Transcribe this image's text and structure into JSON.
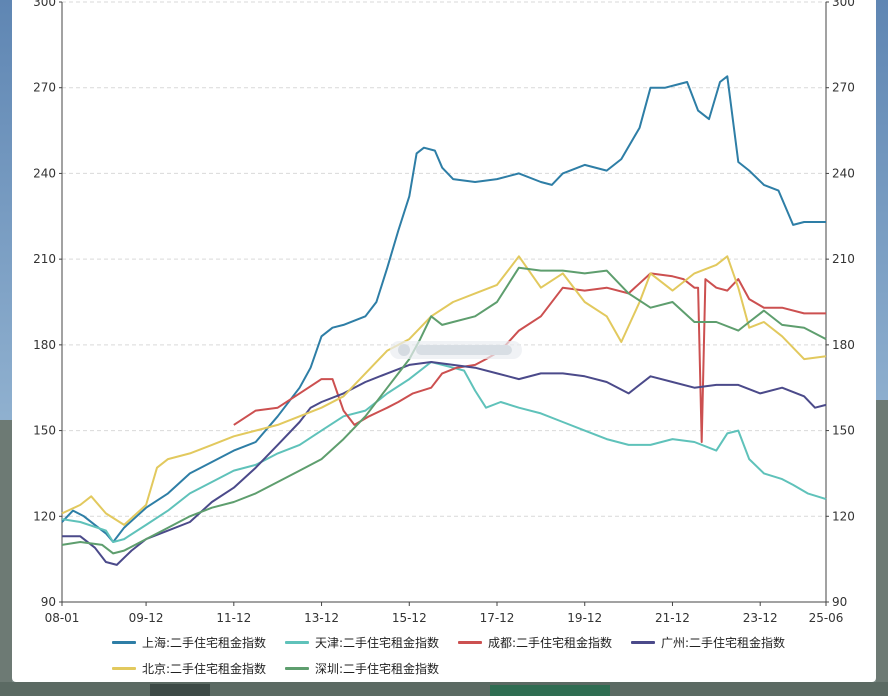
{
  "chart_data": {
    "type": "line",
    "title": "",
    "xlabel": "",
    "ylabel": "",
    "ylim": [
      90,
      300
    ],
    "y_ticks": [
      90,
      120,
      150,
      180,
      210,
      240,
      270,
      300
    ],
    "x_range": [
      "2008-01",
      "2025-06"
    ],
    "x_ticks": [
      "08-01",
      "09-12",
      "11-12",
      "13-12",
      "15-12",
      "17-12",
      "19-12",
      "21-12",
      "23-12",
      "25-06"
    ],
    "grid": "horizontal dashed",
    "legend_position": "bottom",
    "series": [
      {
        "name": "上海:二手住宅租金指数",
        "color": "#2e7ea6",
        "points": [
          [
            "2008-01",
            118
          ],
          [
            "2008-04",
            122
          ],
          [
            "2008-07",
            120
          ],
          [
            "2008-10",
            117
          ],
          [
            "2009-01",
            114
          ],
          [
            "2009-03",
            111
          ],
          [
            "2009-06",
            116
          ],
          [
            "2009-12",
            123
          ],
          [
            "2010-06",
            128
          ],
          [
            "2010-12",
            135
          ],
          [
            "2011-06",
            139
          ],
          [
            "2011-12",
            143
          ],
          [
            "2012-06",
            146
          ],
          [
            "2012-12",
            155
          ],
          [
            "2013-06",
            165
          ],
          [
            "2013-09",
            172
          ],
          [
            "2013-12",
            183
          ],
          [
            "2014-03",
            186
          ],
          [
            "2014-06",
            187
          ],
          [
            "2014-12",
            190
          ],
          [
            "2015-03",
            195
          ],
          [
            "2015-06",
            207
          ],
          [
            "2015-09",
            220
          ],
          [
            "2015-12",
            232
          ],
          [
            "2016-02",
            247
          ],
          [
            "2016-04",
            249
          ],
          [
            "2016-07",
            248
          ],
          [
            "2016-09",
            242
          ],
          [
            "2016-12",
            238
          ],
          [
            "2017-06",
            237
          ],
          [
            "2017-12",
            238
          ],
          [
            "2018-06",
            240
          ],
          [
            "2018-12",
            237
          ],
          [
            "2019-03",
            236
          ],
          [
            "2019-06",
            240
          ],
          [
            "2019-12",
            243
          ],
          [
            "2020-06",
            241
          ],
          [
            "2020-10",
            245
          ],
          [
            "2021-03",
            256
          ],
          [
            "2021-06",
            270
          ],
          [
            "2021-10",
            270
          ],
          [
            "2022-01",
            271
          ],
          [
            "2022-04",
            272
          ],
          [
            "2022-07",
            262
          ],
          [
            "2022-10",
            259
          ],
          [
            "2023-01",
            272
          ],
          [
            "2023-03",
            274
          ],
          [
            "2023-06",
            244
          ],
          [
            "2023-09",
            241
          ],
          [
            "2024-01",
            236
          ],
          [
            "2024-05",
            234
          ],
          [
            "2024-09",
            222
          ],
          [
            "2024-12",
            223
          ],
          [
            "2025-06",
            223
          ]
        ]
      },
      {
        "name": "天津:二手住宅租金指数",
        "color": "#5fc2ba",
        "points": [
          [
            "2008-01",
            119
          ],
          [
            "2008-06",
            118
          ],
          [
            "2009-01",
            115
          ],
          [
            "2009-03",
            111
          ],
          [
            "2009-06",
            112
          ],
          [
            "2009-12",
            117
          ],
          [
            "2010-06",
            122
          ],
          [
            "2010-12",
            128
          ],
          [
            "2011-06",
            132
          ],
          [
            "2011-12",
            136
          ],
          [
            "2012-06",
            138
          ],
          [
            "2012-12",
            142
          ],
          [
            "2013-06",
            145
          ],
          [
            "2013-12",
            150
          ],
          [
            "2014-06",
            155
          ],
          [
            "2014-12",
            157
          ],
          [
            "2015-06",
            163
          ],
          [
            "2015-12",
            168
          ],
          [
            "2016-06",
            174
          ],
          [
            "2016-12",
            172
          ],
          [
            "2017-03",
            171
          ],
          [
            "2017-06",
            164
          ],
          [
            "2017-09",
            158
          ],
          [
            "2018-01",
            160
          ],
          [
            "2018-06",
            158
          ],
          [
            "2018-12",
            156
          ],
          [
            "2019-06",
            153
          ],
          [
            "2019-12",
            150
          ],
          [
            "2020-06",
            147
          ],
          [
            "2020-12",
            145
          ],
          [
            "2021-06",
            145
          ],
          [
            "2021-12",
            147
          ],
          [
            "2022-06",
            146
          ],
          [
            "2022-12",
            143
          ],
          [
            "2023-03",
            149
          ],
          [
            "2023-06",
            150
          ],
          [
            "2023-09",
            140
          ],
          [
            "2024-01",
            135
          ],
          [
            "2024-06",
            133
          ],
          [
            "2024-09",
            131
          ],
          [
            "2025-01",
            128
          ],
          [
            "2025-06",
            126
          ]
        ]
      },
      {
        "name": "成都:二手住宅租金指数",
        "color": "#cc5050",
        "points": [
          [
            "2011-12",
            152
          ],
          [
            "2012-06",
            157
          ],
          [
            "2012-12",
            158
          ],
          [
            "2013-06",
            163
          ],
          [
            "2013-12",
            168
          ],
          [
            "2014-03",
            168
          ],
          [
            "2014-06",
            157
          ],
          [
            "2014-09",
            152
          ],
          [
            "2015-01",
            155
          ],
          [
            "2015-06",
            158
          ],
          [
            "2015-09",
            160
          ],
          [
            "2016-01",
            163
          ],
          [
            "2016-06",
            165
          ],
          [
            "2016-09",
            170
          ],
          [
            "2017-01",
            172
          ],
          [
            "2017-06",
            173
          ],
          [
            "2017-09",
            175
          ],
          [
            "2018-01",
            178
          ],
          [
            "2018-06",
            185
          ],
          [
            "2018-12",
            190
          ],
          [
            "2019-06",
            200
          ],
          [
            "2019-12",
            199
          ],
          [
            "2020-06",
            200
          ],
          [
            "2020-12",
            198
          ],
          [
            "2021-06",
            205
          ],
          [
            "2021-12",
            204
          ],
          [
            "2022-03",
            203
          ],
          [
            "2022-06",
            200
          ],
          [
            "2022-07",
            200
          ],
          [
            "2022-08",
            146
          ],
          [
            "2022-09",
            203
          ],
          [
            "2022-12",
            200
          ],
          [
            "2023-03",
            199
          ],
          [
            "2023-06",
            203
          ],
          [
            "2023-09",
            196
          ],
          [
            "2024-01",
            193
          ],
          [
            "2024-06",
            193
          ],
          [
            "2024-12",
            191
          ],
          [
            "2025-06",
            191
          ]
        ]
      },
      {
        "name": "广州:二手住宅租金指数",
        "color": "#4b4a8a",
        "points": [
          [
            "2008-01",
            113
          ],
          [
            "2008-06",
            113
          ],
          [
            "2008-10",
            109
          ],
          [
            "2009-01",
            104
          ],
          [
            "2009-04",
            103
          ],
          [
            "2009-08",
            108
          ],
          [
            "2009-12",
            112
          ],
          [
            "2010-06",
            115
          ],
          [
            "2010-12",
            118
          ],
          [
            "2011-06",
            125
          ],
          [
            "2011-12",
            130
          ],
          [
            "2012-06",
            137
          ],
          [
            "2012-12",
            145
          ],
          [
            "2013-06",
            153
          ],
          [
            "2013-09",
            158
          ],
          [
            "2013-12",
            160
          ],
          [
            "2014-06",
            163
          ],
          [
            "2014-12",
            167
          ],
          [
            "2015-06",
            170
          ],
          [
            "2015-12",
            173
          ],
          [
            "2016-06",
            174
          ],
          [
            "2016-12",
            173
          ],
          [
            "2017-06",
            172
          ],
          [
            "2017-12",
            170
          ],
          [
            "2018-06",
            168
          ],
          [
            "2018-12",
            170
          ],
          [
            "2019-06",
            170
          ],
          [
            "2019-12",
            169
          ],
          [
            "2020-06",
            167
          ],
          [
            "2020-12",
            163
          ],
          [
            "2021-06",
            169
          ],
          [
            "2021-12",
            167
          ],
          [
            "2022-06",
            165
          ],
          [
            "2022-12",
            166
          ],
          [
            "2023-06",
            166
          ],
          [
            "2023-12",
            163
          ],
          [
            "2024-06",
            165
          ],
          [
            "2024-12",
            162
          ],
          [
            "2025-03",
            158
          ],
          [
            "2025-06",
            159
          ]
        ]
      },
      {
        "name": "北京:二手住宅租金指数",
        "color": "#e2c95e",
        "points": [
          [
            "2008-01",
            121
          ],
          [
            "2008-06",
            124
          ],
          [
            "2008-09",
            127
          ],
          [
            "2009-01",
            121
          ],
          [
            "2009-06",
            117
          ],
          [
            "2009-12",
            124
          ],
          [
            "2010-03",
            137
          ],
          [
            "2010-06",
            140
          ],
          [
            "2010-12",
            142
          ],
          [
            "2011-06",
            145
          ],
          [
            "2011-12",
            148
          ],
          [
            "2012-06",
            150
          ],
          [
            "2012-12",
            152
          ],
          [
            "2013-06",
            155
          ],
          [
            "2013-12",
            158
          ],
          [
            "2014-06",
            162
          ],
          [
            "2014-12",
            170
          ],
          [
            "2015-06",
            178
          ],
          [
            "2015-12",
            182
          ],
          [
            "2016-06",
            190
          ],
          [
            "2016-12",
            195
          ],
          [
            "2017-06",
            198
          ],
          [
            "2017-12",
            201
          ],
          [
            "2018-03",
            206
          ],
          [
            "2018-06",
            211
          ],
          [
            "2018-12",
            200
          ],
          [
            "2019-06",
            205
          ],
          [
            "2019-12",
            195
          ],
          [
            "2020-06",
            190
          ],
          [
            "2020-10",
            181
          ],
          [
            "2021-03",
            195
          ],
          [
            "2021-06",
            205
          ],
          [
            "2021-12",
            199
          ],
          [
            "2022-06",
            205
          ],
          [
            "2022-12",
            208
          ],
          [
            "2023-03",
            211
          ],
          [
            "2023-06",
            200
          ],
          [
            "2023-09",
            186
          ],
          [
            "2024-01",
            188
          ],
          [
            "2024-06",
            183
          ],
          [
            "2024-12",
            175
          ],
          [
            "2025-06",
            176
          ]
        ]
      },
      {
        "name": "深圳:二手住宅租金指数",
        "color": "#5e9e6e",
        "points": [
          [
            "2008-01",
            110
          ],
          [
            "2008-06",
            111
          ],
          [
            "2008-12",
            110
          ],
          [
            "2009-03",
            107
          ],
          [
            "2009-06",
            108
          ],
          [
            "2009-12",
            112
          ],
          [
            "2010-06",
            116
          ],
          [
            "2010-12",
            120
          ],
          [
            "2011-06",
            123
          ],
          [
            "2011-12",
            125
          ],
          [
            "2012-06",
            128
          ],
          [
            "2012-12",
            132
          ],
          [
            "2013-06",
            136
          ],
          [
            "2013-12",
            140
          ],
          [
            "2014-06",
            147
          ],
          [
            "2014-12",
            155
          ],
          [
            "2015-06",
            165
          ],
          [
            "2015-12",
            175
          ],
          [
            "2016-03",
            182
          ],
          [
            "2016-06",
            190
          ],
          [
            "2016-09",
            187
          ],
          [
            "2016-12",
            188
          ],
          [
            "2017-06",
            190
          ],
          [
            "2017-12",
            195
          ],
          [
            "2018-06",
            207
          ],
          [
            "2018-12",
            206
          ],
          [
            "2019-06",
            206
          ],
          [
            "2019-12",
            205
          ],
          [
            "2020-06",
            206
          ],
          [
            "2020-12",
            198
          ],
          [
            "2021-06",
            193
          ],
          [
            "2021-12",
            195
          ],
          [
            "2022-06",
            188
          ],
          [
            "2022-12",
            188
          ],
          [
            "2023-06",
            185
          ],
          [
            "2023-09",
            188
          ],
          [
            "2024-01",
            192
          ],
          [
            "2024-06",
            187
          ],
          [
            "2024-12",
            186
          ],
          [
            "2025-06",
            182
          ]
        ]
      }
    ]
  }
}
